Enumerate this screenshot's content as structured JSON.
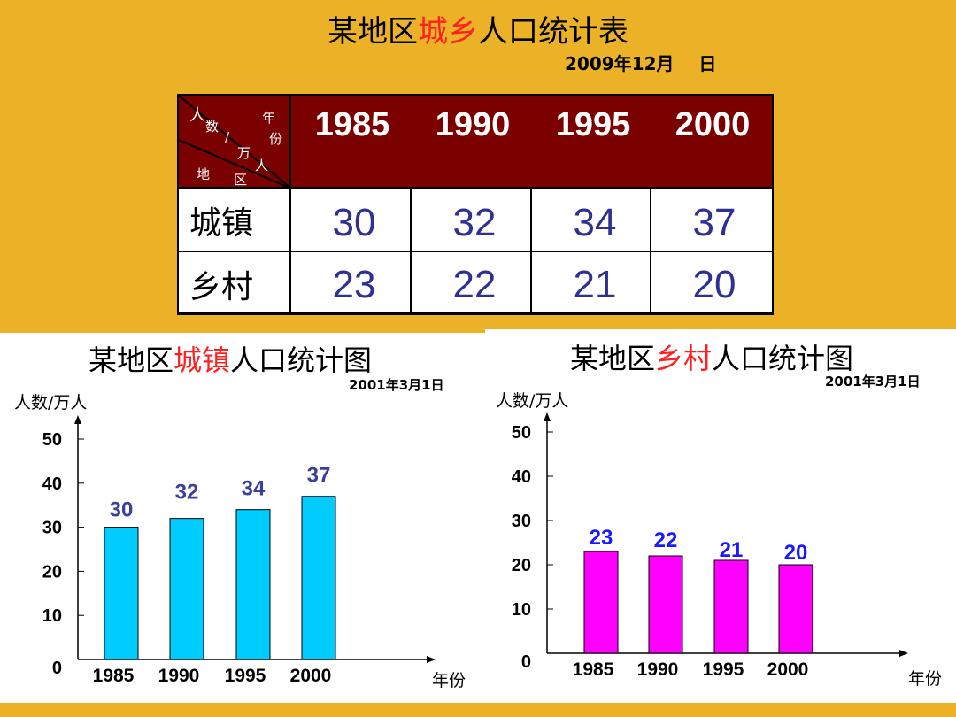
{
  "page": {
    "title_part1": "某地区",
    "title_highlight": "城乡",
    "title_part2": "人口统计表",
    "date": "2009年12月    日"
  },
  "table": {
    "header_corner": {
      "top_left": [
        "人",
        "数",
        "/",
        "万",
        "人"
      ],
      "top_right": [
        "年",
        "份"
      ],
      "bottom": [
        "地",
        "区"
      ]
    },
    "years": [
      "1985",
      "1990",
      "1995",
      "2000"
    ],
    "rows": [
      {
        "label": "城镇",
        "values": [
          "30",
          "32",
          "34",
          "37"
        ]
      },
      {
        "label": "乡村",
        "values": [
          "23",
          "22",
          "21",
          "20"
        ]
      }
    ]
  },
  "colors": {
    "background": "#ecb227",
    "table_header": "#7b0000",
    "table_values": "#2e3192",
    "highlight": "#ff2020",
    "urban_bar": "#00ccff",
    "rural_bar": "#ff00ff",
    "urban_label": "#3b3f9e",
    "rural_label": "#1a1aff"
  },
  "chart_data": [
    {
      "type": "bar",
      "title_part1": "某地区",
      "title_highlight": "城镇",
      "title_part2": "人口统计图",
      "date": "2001年3月1日",
      "ylabel": "人数/万人",
      "xlabel": "年份",
      "categories": [
        "1985",
        "1990",
        "1995",
        "2000"
      ],
      "values": [
        30,
        32,
        34,
        37
      ],
      "yticks": [
        0,
        10,
        20,
        30,
        40,
        50
      ],
      "ylim": [
        0,
        55
      ],
      "grid": false
    },
    {
      "type": "bar",
      "title_part1": "某地区",
      "title_highlight": "乡村",
      "title_part2": "人口统计图",
      "date": "2001年3月1日",
      "ylabel": "人数/万人",
      "xlabel": "年份",
      "categories": [
        "1985",
        "1990",
        "1995",
        "2000"
      ],
      "values": [
        23,
        22,
        21,
        20
      ],
      "yticks": [
        0,
        10,
        20,
        30,
        40,
        50
      ],
      "ylim": [
        0,
        55
      ],
      "grid": false
    }
  ]
}
